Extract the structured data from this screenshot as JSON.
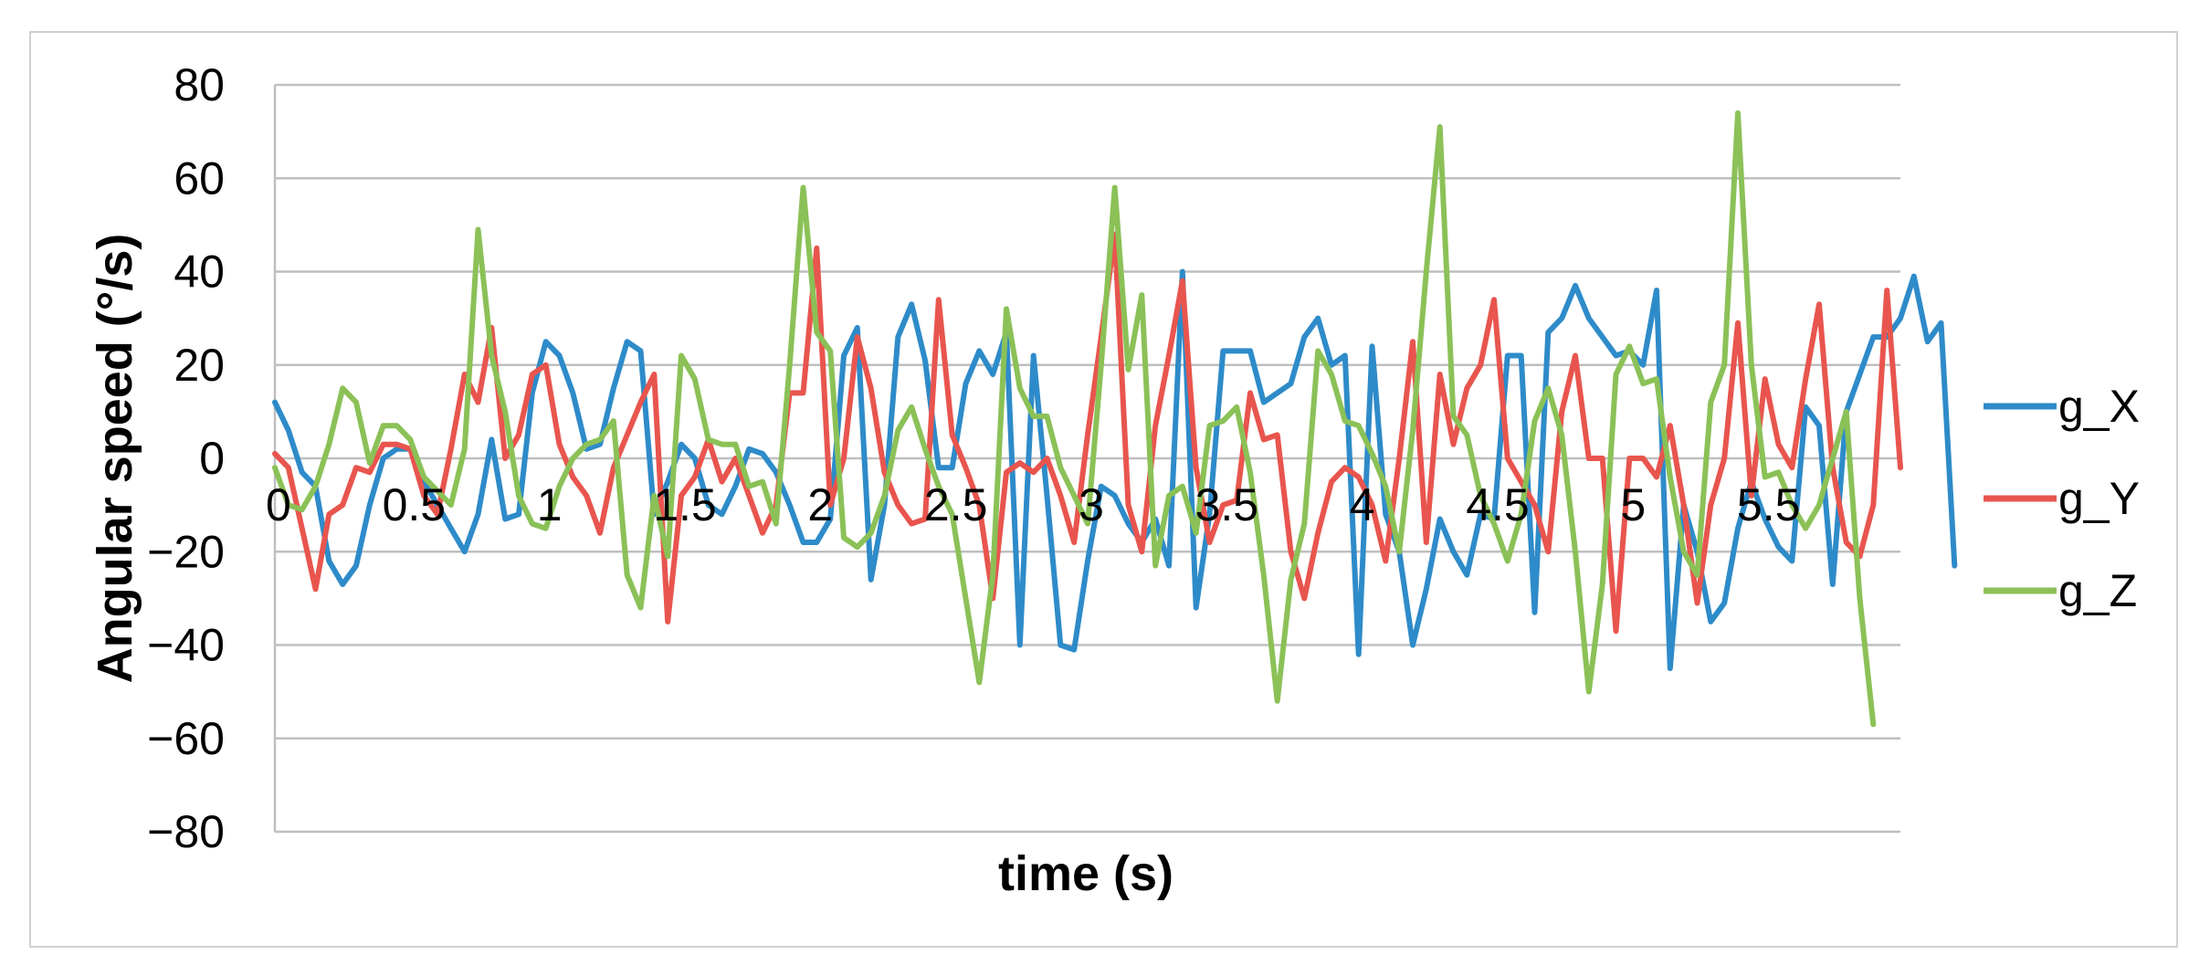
{
  "chart_data": {
    "type": "line",
    "xlabel": "time (s)",
    "ylabel": "Angular speed (°/s)",
    "ylim": [
      -80,
      80
    ],
    "yticks": [
      "80",
      "60",
      "40",
      "20",
      "0",
      "−20",
      "−40",
      "−60",
      "−80"
    ],
    "ytick_values": [
      80,
      60,
      40,
      20,
      0,
      -20,
      -40,
      -60,
      -80
    ],
    "xticks": [
      "0",
      "0.5",
      "1",
      "1.5",
      "2",
      "2.5",
      "3",
      "3.5",
      "4",
      "4.5",
      "5",
      "5.5"
    ],
    "xtick_values": [
      0,
      0.5,
      1,
      1.5,
      2,
      2.5,
      3,
      3.5,
      4,
      4.5,
      5,
      5.5
    ],
    "xlim": [
      0,
      6
    ],
    "x_step": 0.05,
    "grid": true,
    "legend_position": "right",
    "series": [
      {
        "name": "g_X",
        "color": "#2e8bc9",
        "values": [
          12,
          6,
          -3,
          -6,
          -22,
          -27,
          -23,
          -10,
          0,
          2,
          2,
          -5,
          -10,
          -15,
          -20,
          -12,
          4,
          -13,
          -12,
          14,
          25,
          22,
          14,
          2,
          3,
          15,
          25,
          23,
          -12,
          -5,
          3,
          0,
          -10,
          -12,
          -6,
          2,
          1,
          -3,
          -10,
          -18,
          -18,
          -13,
          22,
          28,
          -26,
          -10,
          26,
          33,
          21,
          -2,
          -2,
          16,
          23,
          18,
          27,
          -40,
          22,
          -8,
          -40,
          -41,
          -22,
          -6,
          -8,
          -14,
          -18,
          -13,
          -23,
          40,
          -32,
          -12,
          23,
          23,
          23,
          12,
          14,
          16,
          26,
          30,
          20,
          22,
          -42,
          24,
          -12,
          -20,
          -40,
          -28,
          -13,
          -20,
          -25,
          -12,
          -13,
          22,
          22,
          -33,
          27,
          30,
          37,
          30,
          26,
          22,
          23,
          20,
          36,
          -45,
          -10,
          -20,
          -35,
          -31,
          -15,
          -5,
          -13,
          -19,
          -22,
          11,
          7,
          -27,
          10,
          18,
          26,
          26,
          30,
          39,
          25,
          29,
          -23
        ]
      },
      {
        "name": "g_Y",
        "color": "#e8554e",
        "values": [
          1,
          -2,
          -15,
          -28,
          -12,
          -10,
          -2,
          -3,
          3,
          3,
          2,
          -8,
          -12,
          2,
          18,
          12,
          28,
          0,
          5,
          18,
          20,
          3,
          -4,
          -8,
          -16,
          -2,
          5,
          12,
          18,
          -35,
          -8,
          -4,
          4,
          -5,
          0,
          -8,
          -16,
          -10,
          14,
          14,
          45,
          -10,
          0,
          26,
          15,
          -3,
          -10,
          -14,
          -13,
          34,
          5,
          -2,
          -10,
          -30,
          -3,
          -1,
          -3,
          0,
          -8,
          -18,
          5,
          26,
          48,
          -10,
          -20,
          7,
          22,
          38,
          -2,
          -18,
          -10,
          -9,
          14,
          4,
          5,
          -20,
          -30,
          -16,
          -5,
          -2,
          -4,
          -10,
          -22,
          0,
          25,
          -18,
          18,
          3,
          15,
          20,
          34,
          0,
          -5,
          -10,
          -20,
          10,
          22,
          0,
          0,
          -37,
          0,
          0,
          -4,
          7,
          -10,
          -31,
          -10,
          0,
          29,
          -8,
          17,
          3,
          -2,
          17,
          33,
          -2,
          -18,
          -21,
          -10,
          36,
          -2
        ]
      },
      {
        "name": "g_Z",
        "color": "#8bc157",
        "values": [
          -2,
          -10,
          -11,
          -6,
          3,
          15,
          12,
          -1,
          7,
          7,
          4,
          -4,
          -7,
          -10,
          2,
          49,
          22,
          10,
          -8,
          -14,
          -15,
          -6,
          0,
          3,
          4,
          8,
          -25,
          -32,
          -8,
          -21,
          22,
          17,
          4,
          3,
          3,
          -6,
          -5,
          -14,
          20,
          58,
          27,
          23,
          -17,
          -19,
          -16,
          -8,
          6,
          11,
          2,
          -6,
          -12,
          -30,
          -48,
          -25,
          32,
          15,
          9,
          9,
          -2,
          -8,
          -14,
          20,
          58,
          19,
          35,
          -23,
          -8,
          -6,
          -16,
          7,
          8,
          11,
          -3,
          -25,
          -52,
          -26,
          -14,
          23,
          18,
          8,
          7,
          1,
          -6,
          -20,
          6,
          40,
          71,
          9,
          5,
          -8,
          -14,
          -22,
          -12,
          8,
          15,
          5,
          -20,
          -50,
          -27,
          18,
          24,
          16,
          17,
          -4,
          -20,
          -25,
          12,
          20,
          74,
          20,
          -4,
          -3,
          -10,
          -15,
          -10,
          0,
          10,
          -30,
          -57
        ]
      }
    ]
  }
}
